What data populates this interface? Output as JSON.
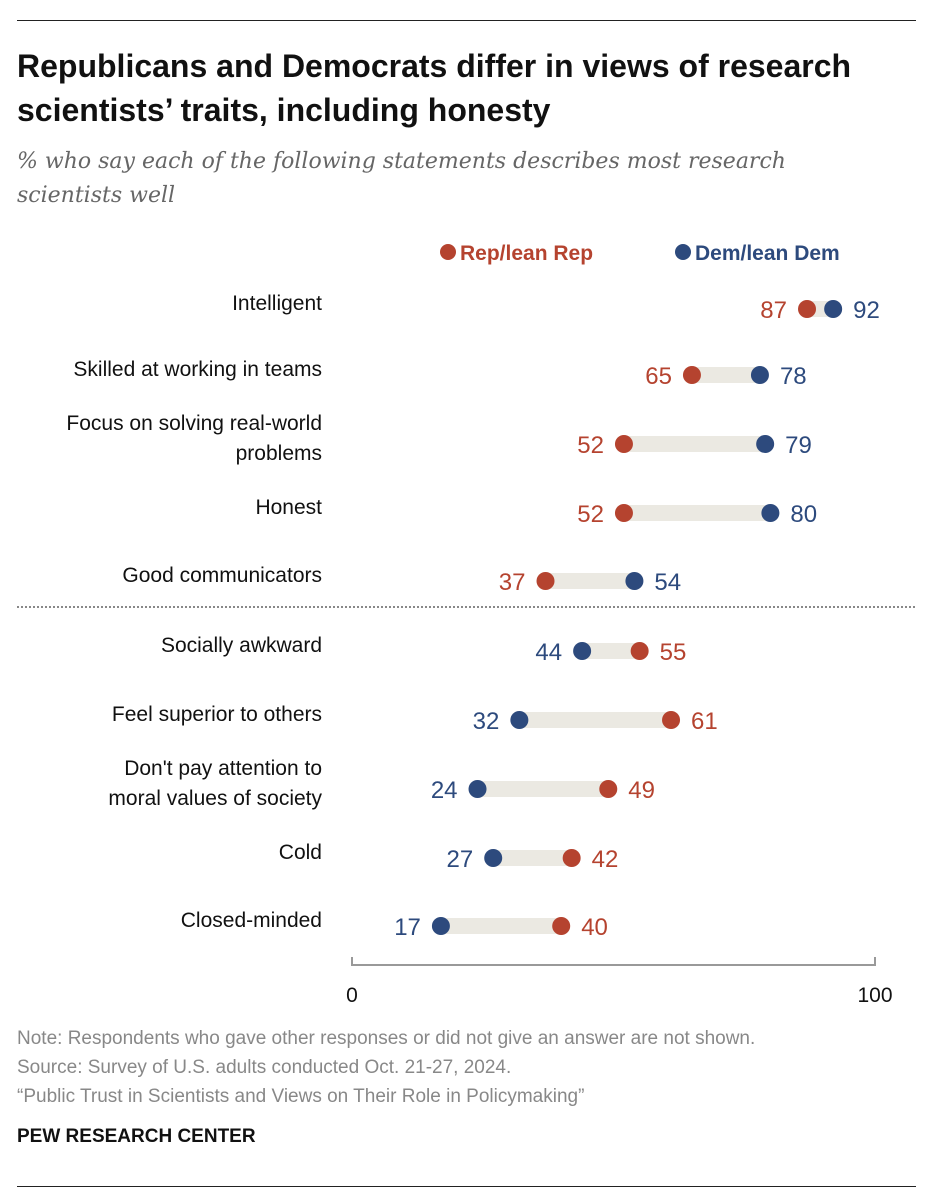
{
  "title": "Republicans and Democrats differ in views of research scientists’ traits, including honesty",
  "subtitle": "% who say each of the following statements describes most research scientists well",
  "notes": [
    "Note: Respondents who gave other responses or did not give an answer are not shown.",
    "Source: Survey of U.S. adults conducted Oct. 21-27, 2024.",
    "“Public Trust in Scientists and Views on Their Role in Policymaking”"
  ],
  "brand": "PEW RESEARCH CENTER",
  "chart_data": {
    "type": "dot",
    "xlim": [
      0,
      100
    ],
    "xticks": [
      "0",
      "100"
    ],
    "legend_position": "top",
    "colors": {
      "rep": "#b5432f",
      "dem": "#2d4a7d",
      "bar": "#ebe9e2"
    },
    "series": [
      {
        "name": "Rep/lean Rep",
        "key": "rep"
      },
      {
        "name": "Dem/lean Dem",
        "key": "dem"
      }
    ],
    "rows": [
      {
        "label": [
          "Intelligent"
        ],
        "rep": 87,
        "dem": 92
      },
      {
        "label": [
          "Skilled at working in teams"
        ],
        "rep": 65,
        "dem": 78
      },
      {
        "label": [
          "Focus on solving real-world",
          "problems"
        ],
        "rep": 52,
        "dem": 79
      },
      {
        "label": [
          "Honest"
        ],
        "rep": 52,
        "dem": 80
      },
      {
        "label": [
          "Good communicators"
        ],
        "rep": 37,
        "dem": 54
      },
      {
        "label": [
          "Socially awkward"
        ],
        "rep": 55,
        "dem": 44
      },
      {
        "label": [
          "Feel superior to others"
        ],
        "rep": 61,
        "dem": 32
      },
      {
        "label": [
          "Don't pay attention to",
          "moral values of society"
        ],
        "rep": 49,
        "dem": 24
      },
      {
        "label": [
          "Cold"
        ],
        "rep": 42,
        "dem": 27
      },
      {
        "label": [
          "Closed-minded"
        ],
        "rep": 40,
        "dem": 17
      }
    ]
  }
}
